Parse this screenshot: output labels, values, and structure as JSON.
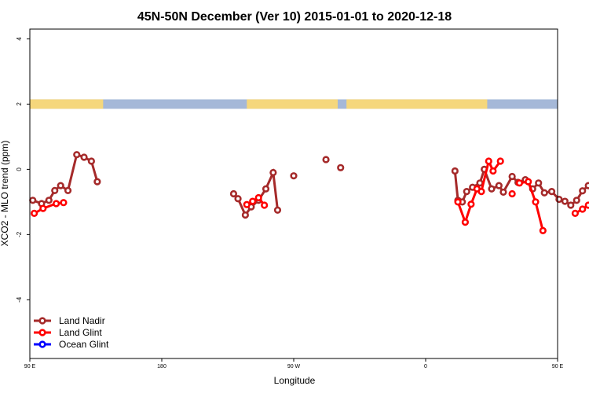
{
  "chart_data": {
    "type": "line",
    "title": "45N-50N December (Ver 10)   2015-01-01 to 2020-12-18",
    "xlabel": "Longitude",
    "ylabel": "XCO2 - MLO trend (ppm)",
    "xlim": [
      90,
      450
    ],
    "ylim": [
      -5.8,
      4.3
    ],
    "x_ticks": [
      {
        "value": 90,
        "label": "90 E"
      },
      {
        "value": 180,
        "label": "180"
      },
      {
        "value": 270,
        "label": "90 W"
      },
      {
        "value": 360,
        "label": "0"
      },
      {
        "value": 450,
        "label": "90 E"
      },
      {
        "value": 540,
        "label": "180"
      }
    ],
    "y_ticks": [
      {
        "value": 4,
        "label": "4"
      },
      {
        "value": 2,
        "label": "2"
      },
      {
        "value": 0,
        "label": "0"
      },
      {
        "value": -2,
        "label": "-2"
      },
      {
        "value": -4,
        "label": "-4"
      }
    ],
    "grid": false,
    "legend_position": "bottom-left",
    "land_ocean_strip": {
      "y_value": 2,
      "land_color": "#F5D77C",
      "ocean_color": "#A5B8D8",
      "land_segments": [
        [
          90,
          140
        ],
        [
          238,
          300
        ],
        [
          306,
          402
        ],
        [
          546,
          600
        ]
      ]
    },
    "series": [
      {
        "name": "Land Nadir",
        "color": "#A52A2A",
        "segments": [
          [
            [
              92,
              -0.95
            ],
            [
              98,
              -1.05
            ],
            [
              103,
              -0.95
            ],
            [
              107,
              -0.65
            ],
            [
              111,
              -0.5
            ],
            [
              116,
              -0.65
            ],
            [
              122,
              0.45
            ],
            [
              127,
              0.37
            ],
            [
              132,
              0.25
            ],
            [
              136,
              -0.38
            ]
          ],
          [
            [
              229,
              -0.75
            ],
            [
              232,
              -0.9
            ],
            [
              237,
              -1.4
            ],
            [
              241,
              -1.15
            ],
            [
              246,
              -0.95
            ],
            [
              251,
              -0.6
            ],
            [
              256,
              -0.1
            ],
            [
              259,
              -1.25
            ]
          ],
          [
            [
              270,
              -0.2
            ]
          ],
          [
            [
              292,
              0.3
            ]
          ],
          [
            [
              302,
              0.05
            ]
          ],
          [
            [
              380,
              -0.05
            ],
            [
              382,
              -0.95
            ],
            [
              385,
              -1.0
            ],
            [
              388,
              -0.68
            ],
            [
              392,
              -0.55
            ],
            [
              397,
              -0.42
            ],
            [
              400,
              0.0
            ],
            [
              405,
              -0.6
            ],
            [
              410,
              -0.5
            ],
            [
              413,
              -0.7
            ],
            [
              419,
              -0.22
            ],
            [
              423,
              -0.4
            ],
            [
              428,
              -0.32
            ],
            [
              433,
              -0.6
            ],
            [
              437,
              -0.42
            ],
            [
              441,
              -0.72
            ],
            [
              446,
              -0.68
            ],
            [
              451,
              -0.92
            ],
            [
              455,
              -0.98
            ],
            [
              459,
              -1.1
            ],
            [
              463,
              -0.95
            ],
            [
              467,
              -0.66
            ],
            [
              471,
              -0.5
            ],
            [
              475,
              -0.66
            ],
            [
              479,
              0.45
            ],
            [
              484,
              0.37
            ],
            [
              489,
              0.25
            ],
            [
              494,
              -0.38
            ]
          ]
        ]
      },
      {
        "name": "Land Glint",
        "color": "#FF0000",
        "segments": [
          [
            [
              93,
              -1.35
            ],
            [
              99,
              -1.2
            ],
            [
              108,
              -1.05
            ],
            [
              113,
              -1.02
            ]
          ],
          [
            [
              238,
              -1.08
            ],
            [
              242,
              -0.98
            ],
            [
              246,
              -0.87
            ],
            [
              250,
              -1.1
            ]
          ],
          [
            [
              382,
              -1.0
            ],
            [
              387,
              -1.62
            ],
            [
              391,
              -1.07
            ],
            [
              395,
              -0.6
            ],
            [
              398,
              -0.68
            ],
            [
              403,
              0.25
            ],
            [
              406,
              -0.05
            ],
            [
              411,
              0.25
            ]
          ],
          [
            [
              419,
              -0.75
            ]
          ],
          [
            [
              424,
              -0.42
            ],
            [
              430,
              -0.38
            ],
            [
              435,
              -1.0
            ],
            [
              440,
              -1.88
            ]
          ],
          [
            [
              462,
              -1.35
            ],
            [
              467,
              -1.22
            ],
            [
              471,
              -1.1
            ],
            [
              476,
              -1.05
            ]
          ]
        ]
      },
      {
        "name": "Ocean Glint",
        "color": "#0000FF",
        "segments": []
      }
    ]
  }
}
